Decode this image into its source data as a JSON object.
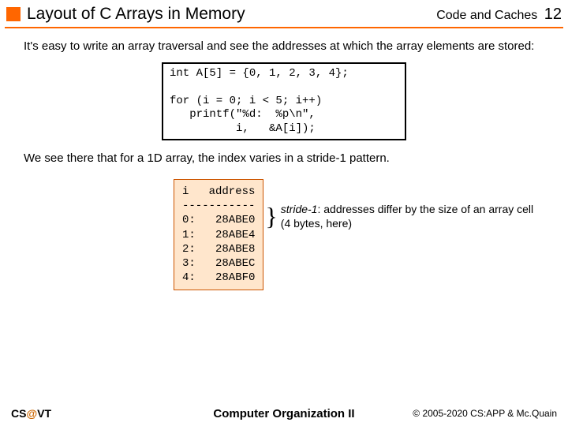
{
  "header": {
    "title": "Layout of C Arrays in Memory",
    "section": "Code and Caches",
    "page": "12",
    "accent_color": "#ff6600"
  },
  "body": {
    "para1": "It's easy to write an array traversal and see the addresses at which the array elements are stored:",
    "code": "int A[5] = {0, 1, 2, 3, 4};\n\nfor (i = 0; i < 5; i++)\n   printf(\"%d:  %p\\n\",\n          i,   &A[i]);",
    "para2": "We see there that for a 1D array, the index varies in a stride-1 pattern.",
    "output": "i   address\n-----------\n0:   28ABE0\n1:   28ABE4\n2:   28ABE8\n3:   28ABEC\n4:   28ABF0",
    "annotation_lead": "stride-1",
    "annotation_rest": ": addresses differ by the size of an array cell (4 bytes, here)"
  },
  "footer": {
    "left_cs": "CS",
    "left_at": "@",
    "left_vt": "VT",
    "center": "Computer Organization II",
    "right": "© 2005-2020 CS:APP & Mc.Quain"
  },
  "styles": {
    "output_bg": "#ffe6cc",
    "output_border": "#cc5500"
  }
}
